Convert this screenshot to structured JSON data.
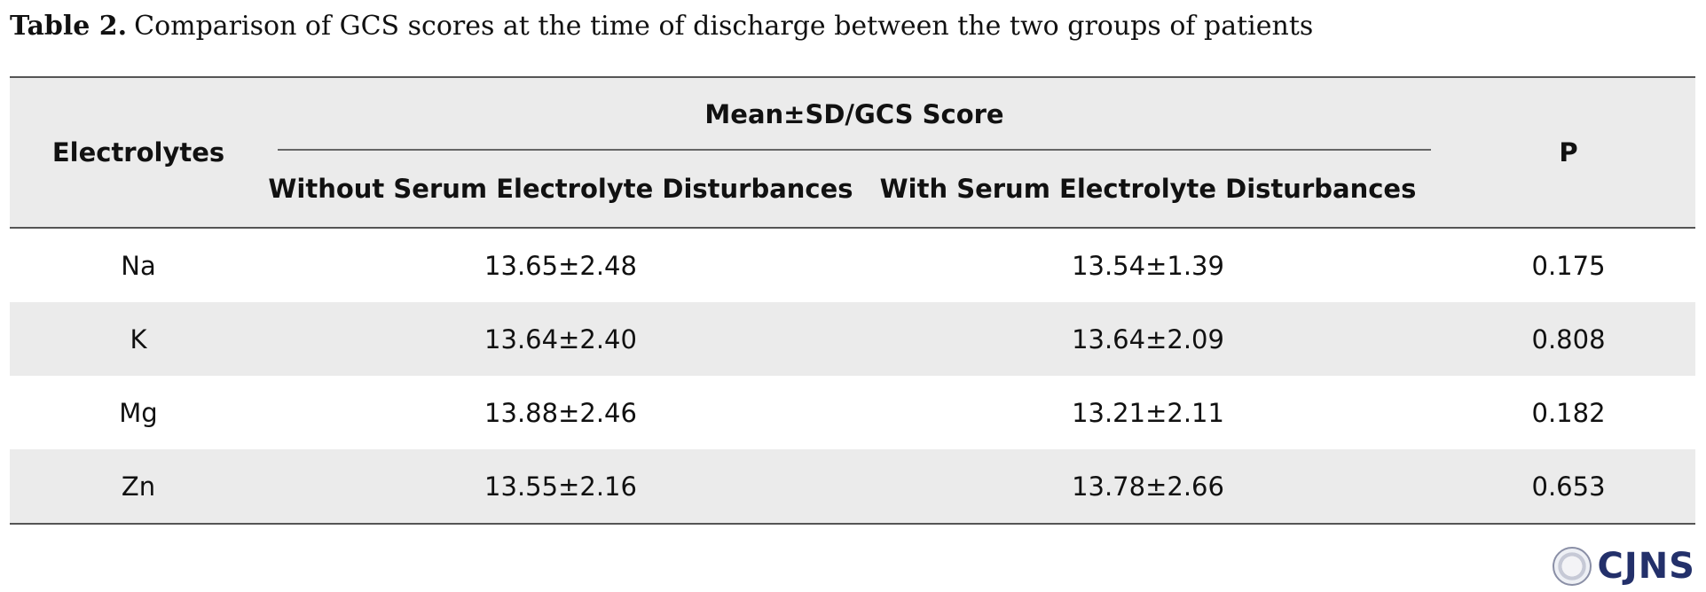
{
  "caption": {
    "label": "Table 2.",
    "text": "Comparison of GCS scores at the time of discharge between the two groups of patients"
  },
  "table": {
    "header": {
      "electrolytes": "Electrolytes",
      "group": "Mean±SD/GCS Score",
      "without": "Without Serum Electrolyte Disturbances",
      "with": "With Serum Electrolyte Disturbances",
      "p": "P"
    },
    "rows": [
      {
        "electrolyte": "Na",
        "without": "13.65±2.48",
        "with": "13.54±1.39",
        "p": "0.175"
      },
      {
        "electrolyte": "K",
        "without": "13.64±2.40",
        "with": "13.64±2.09",
        "p": "0.808"
      },
      {
        "electrolyte": "Mg",
        "without": "13.88±2.46",
        "with": "13.21±2.11",
        "p": "0.182"
      },
      {
        "electrolyte": "Zn",
        "without": "13.55±2.16",
        "with": "13.78±2.66",
        "p": "0.653"
      }
    ]
  },
  "logo": {
    "text": "CJNS"
  }
}
